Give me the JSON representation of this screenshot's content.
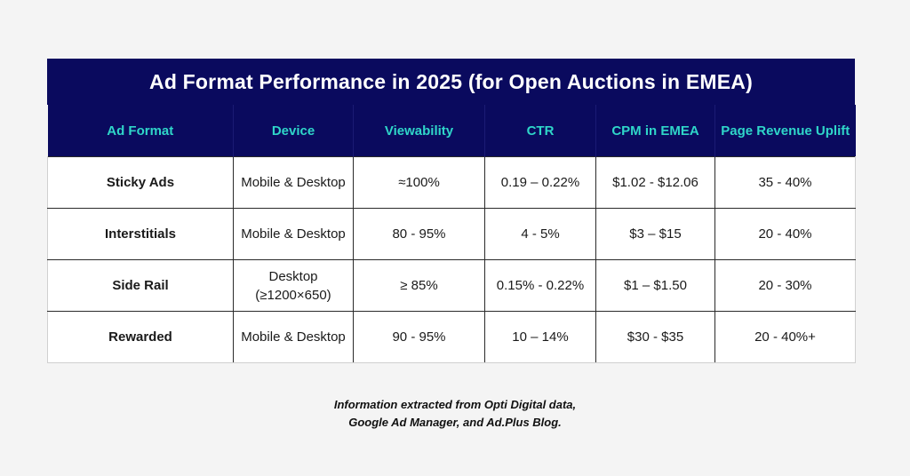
{
  "title": "Ad Format Performance in 2025 (for Open Auctions in EMEA)",
  "columns": [
    "Ad Format",
    "Device",
    "Viewability",
    "CTR",
    "CPM in EMEA",
    "Page Revenue Uplift"
  ],
  "rows": [
    {
      "format": "Sticky Ads",
      "device": "Mobile & Desktop",
      "viewability": "≈100%",
      "ctr": "0.19 – 0.22%",
      "cpm": "$1.02 - $12.06",
      "uplift": "35 - 40%"
    },
    {
      "format": "Interstitials",
      "device": "Mobile & Desktop",
      "viewability": "80 - 95%",
      "ctr": "4 - 5%",
      "cpm": "$3 – $15",
      "uplift": "20 - 40%"
    },
    {
      "format": "Side Rail",
      "device": "Desktop (≥1200×650)",
      "viewability": "≥ 85%",
      "ctr": "0.15% - 0.22%",
      "cpm": "$1 – $1.50",
      "uplift": "20 - 30%"
    },
    {
      "format": "Rewarded",
      "device": "Mobile & Desktop",
      "viewability": "90 - 95%",
      "ctr": "10 – 14%",
      "cpm": "$30 - $35",
      "uplift": "20 - 40%+"
    }
  ],
  "footnote": {
    "line1": "Information extracted from Opti Digital data,",
    "line2": "Google Ad Manager, and Ad.Plus Blog."
  },
  "colors": {
    "header_bg": "#0a0a5e",
    "title_text": "#ffffff",
    "header_text": "#2fd6c9",
    "page_bg": "#f4f4f4"
  }
}
